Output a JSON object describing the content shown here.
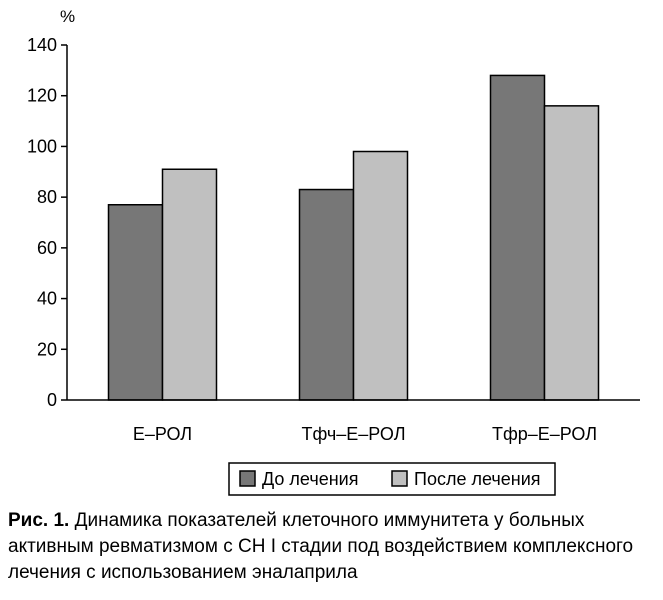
{
  "chart_data": {
    "type": "bar",
    "ylabel": "%",
    "ylim": [
      0,
      140
    ],
    "yticks": [
      0,
      20,
      40,
      60,
      80,
      100,
      120,
      140
    ],
    "categories": [
      "Е–РОЛ",
      "Тфч–Е–РОЛ",
      "Тфр–Е–РОЛ"
    ],
    "series": [
      {
        "name": "До лечения",
        "values": [
          77,
          83,
          128
        ],
        "color": "#777777"
      },
      {
        "name": "После лечения",
        "values": [
          91,
          98,
          116
        ],
        "color": "#c0c0c0"
      }
    ],
    "grid": false,
    "legend_position": "bottom"
  },
  "caption": {
    "lead": "Рис. 1.",
    "text": "Динамика показателей клеточного иммунитета у больных активным ревматизмом с СН I стадии под воздействием комплексного лечения с использованием эналаприла"
  }
}
